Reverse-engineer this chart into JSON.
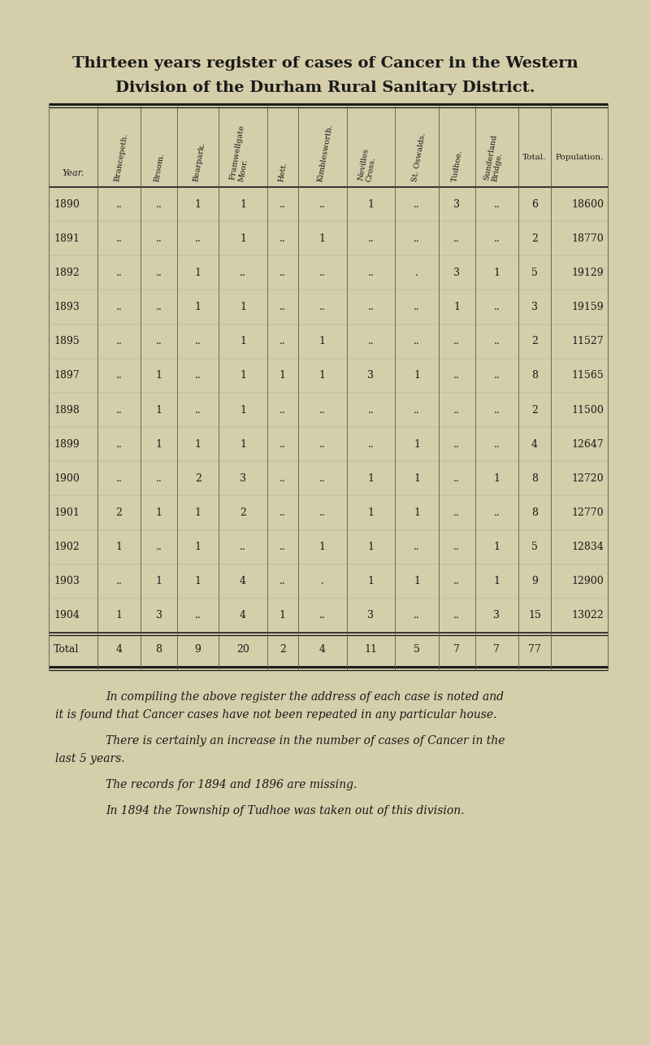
{
  "title_line1": "Thirteen years register of cases of Cancer in the Western",
  "title_line2": "Division of the Durham Rural Sanitary District.",
  "background_color": "#d4ceaa",
  "text_color": "#1a1a1a",
  "columns": [
    "Year.",
    "Brancepeth.",
    "Broom.",
    "Bearpark.",
    "Framwellgate\nMoor.",
    "Hett.",
    "Kimblesworth.",
    "Nevilles\nCross.",
    "St. Oswalds.",
    "Tudhoe.",
    "Sunderland\nBridge.",
    "Total.",
    "Population."
  ],
  "rows": [
    [
      "1890",
      "..",
      "..",
      "1",
      "1",
      "..",
      "..",
      "1",
      "..",
      "3",
      "..",
      "6",
      "18600"
    ],
    [
      "1891",
      "..",
      "..",
      "..",
      "1",
      "..",
      "1",
      "..",
      "..",
      "..",
      "..",
      "2",
      "18770"
    ],
    [
      "1892",
      "..",
      "..",
      "1",
      "..",
      "..",
      "..",
      "..",
      ".",
      "3",
      "1",
      "5",
      "19129"
    ],
    [
      "1893",
      "..",
      "..",
      "1",
      "1",
      "..",
      "..",
      "..",
      "..",
      "1",
      "..",
      "3",
      "19159"
    ],
    [
      "1895",
      "..",
      "..",
      "..",
      "1",
      "..",
      "1",
      "..",
      "..",
      "..",
      "..",
      "2",
      "11527"
    ],
    [
      "1897",
      "..",
      "1",
      "..",
      "1",
      "1",
      "1",
      "3",
      "1",
      "..",
      "..",
      "8",
      "11565"
    ],
    [
      "1898",
      "..",
      "1",
      "..",
      "1",
      "..",
      "..",
      "..",
      "..",
      "..",
      "..",
      "2",
      "11500"
    ],
    [
      "1899",
      "..",
      "1",
      "1",
      "1",
      "..",
      "..",
      "..",
      "1",
      "..",
      "..",
      "4",
      "12647"
    ],
    [
      "1900",
      "..",
      "..",
      "2",
      "3",
      "..",
      "..",
      "1",
      "1",
      "..",
      "1",
      "8",
      "12720"
    ],
    [
      "1901",
      "2",
      "1",
      "1",
      "2",
      "..",
      "..",
      "1",
      "1",
      "..",
      "..",
      "8",
      "12770"
    ],
    [
      "1902",
      "1",
      "..",
      "1",
      "..",
      "..",
      "1",
      "1",
      "..",
      "..",
      "1",
      "5",
      "12834"
    ],
    [
      "1903",
      "..",
      "1",
      "1",
      "4",
      "..",
      ".",
      "1",
      "1",
      "..",
      "1",
      "9",
      "12900"
    ],
    [
      "1904",
      "1",
      "3",
      "..",
      "4",
      "1",
      "..",
      "3",
      "..",
      "..",
      "3",
      "15",
      "13022"
    ]
  ],
  "total_row": [
    "Total",
    "4",
    "8",
    "9",
    "20",
    "2",
    "4",
    "11",
    "5",
    "7",
    "7",
    "77",
    ""
  ],
  "footer_paragraphs": [
    [
      "In compiling the above register the address of each case is noted and",
      "it is found that Cancer cases have not been repeated in any particular house."
    ],
    [
      "There is certainly an increase in the number of cases of Cancer in the",
      "last 5 years."
    ],
    [
      "The records for 1894 and 1896 are missing."
    ],
    [
      "In 1894 the Township of Tudhoe was taken out of this division."
    ]
  ]
}
